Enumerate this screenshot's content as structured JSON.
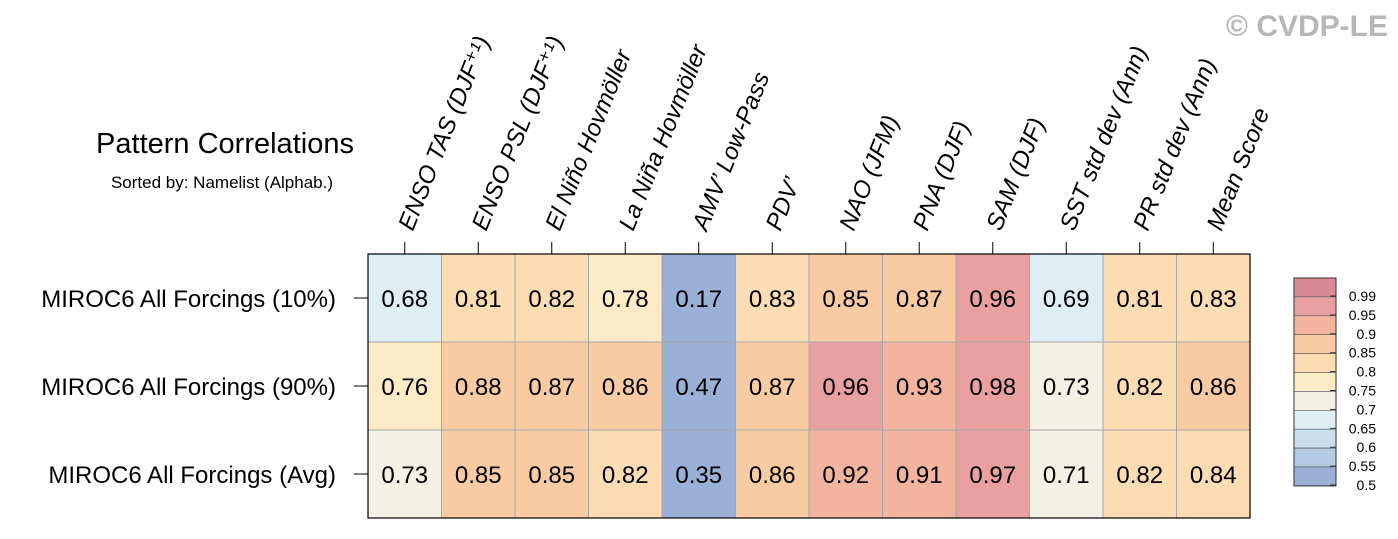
{
  "watermark": "© CVDP-LE",
  "chart_data": {
    "type": "heatmap",
    "title": "Pattern Correlations",
    "subtitle": "Sorted by: Namelist (Alphab.)",
    "columns": [
      "ENSO TAS (DJF⁺¹)",
      "ENSO PSL (DJF⁺¹)",
      "El Niño Hovmöller",
      "La Niña Hovmöller",
      "AMV’ Low-Pass",
      "PDV’",
      "NAO (JFM)",
      "PNA (DJF)",
      "SAM (DJF)",
      "SST std dev (Ann)",
      "PR std dev (Ann)",
      "Mean Score"
    ],
    "rows": [
      {
        "label": "MIROC6 All Forcings (10%)",
        "values": [
          0.68,
          0.81,
          0.82,
          0.78,
          0.17,
          0.83,
          0.85,
          0.87,
          0.96,
          0.69,
          0.81,
          0.83
        ]
      },
      {
        "label": "MIROC6 All Forcings (90%)",
        "values": [
          0.76,
          0.88,
          0.87,
          0.86,
          0.47,
          0.87,
          0.96,
          0.93,
          0.98,
          0.73,
          0.82,
          0.86
        ]
      },
      {
        "label": "MIROC6 All Forcings (Avg)",
        "values": [
          0.73,
          0.85,
          0.85,
          0.82,
          0.35,
          0.86,
          0.92,
          0.91,
          0.97,
          0.71,
          0.82,
          0.84
        ]
      }
    ],
    "value_format": "2 decimals",
    "colorbar": {
      "ticks": [
        "0.99",
        "0.95",
        "0.9",
        "0.85",
        "0.8",
        "0.75",
        "0.7",
        "0.65",
        "0.6",
        "0.55",
        "0.5"
      ],
      "levels": [
        0.99,
        0.95,
        0.9,
        0.85,
        0.8,
        0.75,
        0.7,
        0.65,
        0.6,
        0.55,
        0.5
      ],
      "colors": [
        "#d98b95",
        "#e8a0a0",
        "#f2b49f",
        "#f9cba3",
        "#fcdcb3",
        "#fdebc8",
        "#f3f1e4",
        "#dfeef5",
        "#c9e0ec",
        "#b2cbe2",
        "#9ab0d6"
      ]
    }
  }
}
